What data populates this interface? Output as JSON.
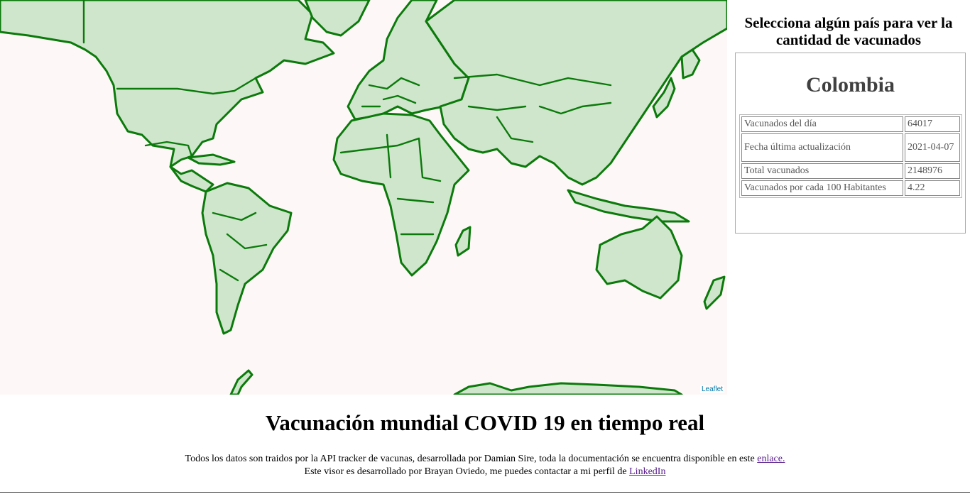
{
  "map": {
    "attribution": "Leaflet",
    "colors": {
      "fill": "#cfe6cc",
      "stroke": "#0b7a0b",
      "background": "#fdf8f7"
    }
  },
  "sidebar": {
    "heading": "Selecciona algún país para ver la cantidad de vacunados",
    "country": "Colombia",
    "rows": [
      {
        "label": "Vacunados del día",
        "value": "64017"
      },
      {
        "label": "Fecha última actualización",
        "value": "2021-04-07"
      },
      {
        "label": "Total vacunados",
        "value": "2148976"
      },
      {
        "label": "Vacunados por cada 100 Habitantes",
        "value": "4.22"
      }
    ]
  },
  "footer": {
    "title": "Vacunación mundial COVID 19 en tiempo real",
    "line1": "Todos los datos son traidos por la API tracker de vacunas, desarrollada por Damian Sire, toda la documentación se encuentra disponible en este",
    "line1_link": "enlace.",
    "line2": "Este visor es desarrollado por Brayan Oviedo, me puedes contactar a mi perfil de",
    "line2_link": "LinkedIn"
  }
}
